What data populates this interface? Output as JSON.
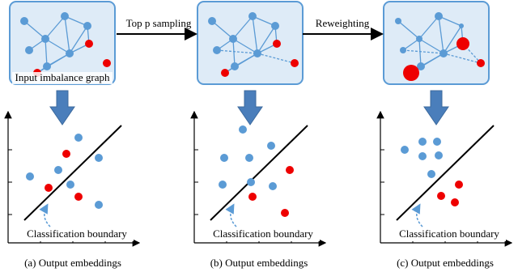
{
  "panels": [
    {
      "graph_label": "Input imbalance graph",
      "boundary_label": "Classification boundary",
      "caption": "(a) Output embeddings"
    },
    {
      "boundary_label": "Classification boundary",
      "caption": "(b) Output embeddings"
    },
    {
      "boundary_label": "Classification boundary",
      "caption": "(c) Output embeddings"
    }
  ],
  "arrows": [
    {
      "label": "Top p sampling"
    },
    {
      "label": "Reweighting"
    }
  ]
}
